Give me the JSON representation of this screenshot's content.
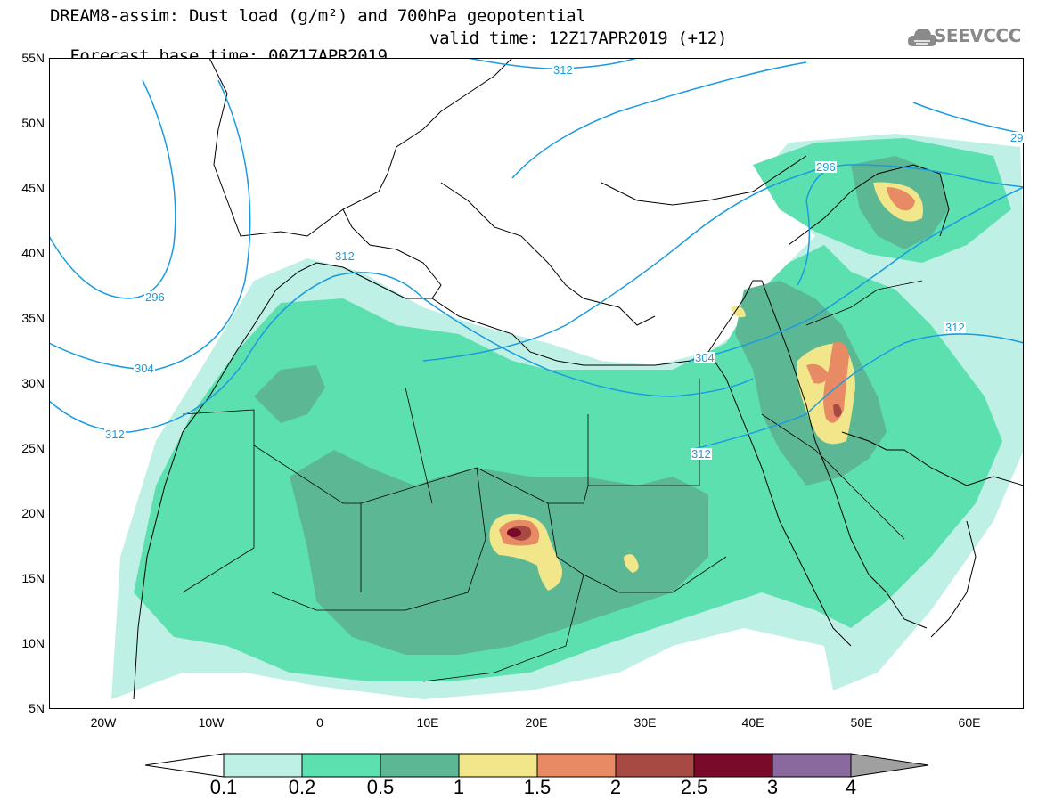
{
  "title": {
    "line1": "DREAM8-assim: Dust load (g/m²) and 700hPa geopotential",
    "line2_left": "Forecast base time: 00Z17APR2019",
    "line2_right": "valid time: 12Z17APR2019 (+12)"
  },
  "logo": {
    "text": "SEEVCCC",
    "icon": "cloud-icon"
  },
  "axes": {
    "lat_labels": [
      "55N",
      "50N",
      "45N",
      "40N",
      "35N",
      "30N",
      "25N",
      "20N",
      "15N",
      "10N",
      "5N"
    ],
    "lon_labels": [
      "20W",
      "10W",
      "0",
      "10E",
      "20E",
      "30E",
      "40E",
      "50E",
      "60E"
    ],
    "lat_range": [
      5,
      55
    ],
    "lon_range": [
      -25,
      65
    ]
  },
  "contours": {
    "labels": [
      "312",
      "296",
      "312",
      "296",
      "304",
      "312",
      "304",
      "312",
      "312",
      "29"
    ]
  },
  "colorbar": {
    "ticks": [
      "0.1",
      "0.2",
      "0.5",
      "1",
      "1.5",
      "2",
      "2.5",
      "3",
      "4"
    ],
    "colors": [
      "#bff0e6",
      "#5ce0b0",
      "#5cb894",
      "#f2e68a",
      "#e88a64",
      "#a84a44",
      "#7a0a2a",
      "#8a6a9e",
      "#a0a0a0"
    ]
  },
  "colors": {
    "contour": "#1a9be0",
    "coast": "#000000"
  }
}
